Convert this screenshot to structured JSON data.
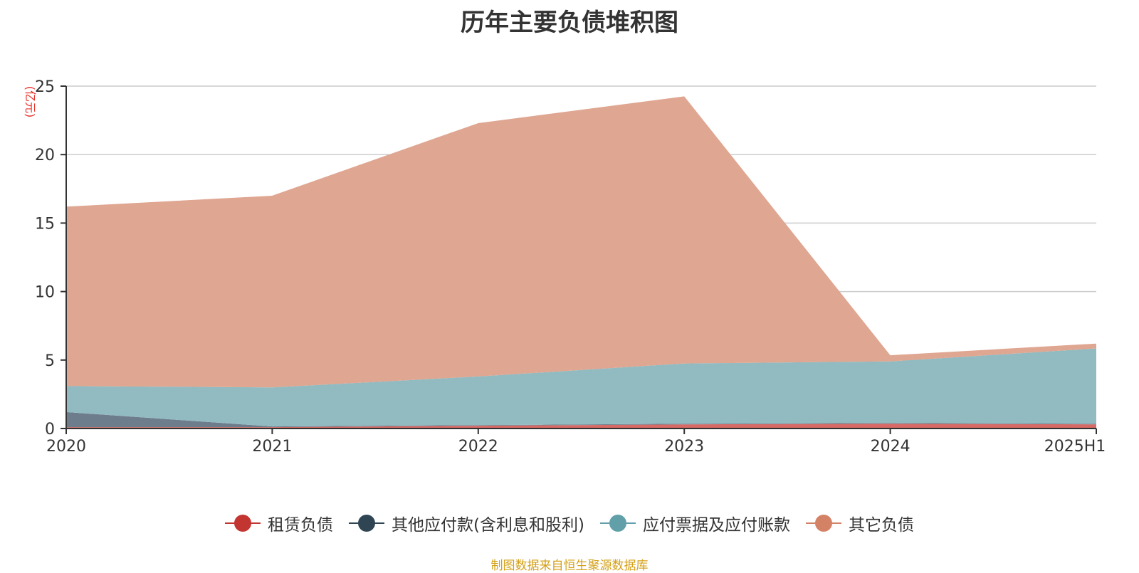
{
  "title": "历年主要负债堆积图",
  "source_note": "制图数据来自恒生聚源数据库",
  "chart_data": {
    "type": "area",
    "stacked": true,
    "title": "历年主要负债堆积图",
    "ylabel": "(亿元)",
    "xlabel": "",
    "categories": [
      "2020",
      "2021",
      "2022",
      "2023",
      "2024",
      "2025H1"
    ],
    "yticks": [
      0,
      5,
      10,
      15,
      20,
      25
    ],
    "ylim": [
      0,
      25
    ],
    "grid": true,
    "legend_position": "bottom",
    "series": [
      {
        "name": "租赁负债",
        "color": "#c23531",
        "fill": "#d86a66",
        "values": [
          0.1,
          0.1,
          0.2,
          0.3,
          0.35,
          0.3
        ]
      },
      {
        "name": "其他应付款(含利息和股利)",
        "color": "#2f4554",
        "fill": "#6e7d8c",
        "values": [
          1.1,
          0.05,
          0.05,
          0.05,
          0.05,
          0.05
        ]
      },
      {
        "name": "应付票据及应付账款",
        "color": "#61a0a8",
        "fill": "#91bbc1",
        "values": [
          1.9,
          2.85,
          3.55,
          4.4,
          4.5,
          5.5
        ]
      },
      {
        "name": "其它负债",
        "color": "#d48265",
        "fill": "#dfa691",
        "values": [
          13.1,
          14.0,
          18.5,
          19.5,
          0.45,
          0.35
        ]
      }
    ]
  }
}
